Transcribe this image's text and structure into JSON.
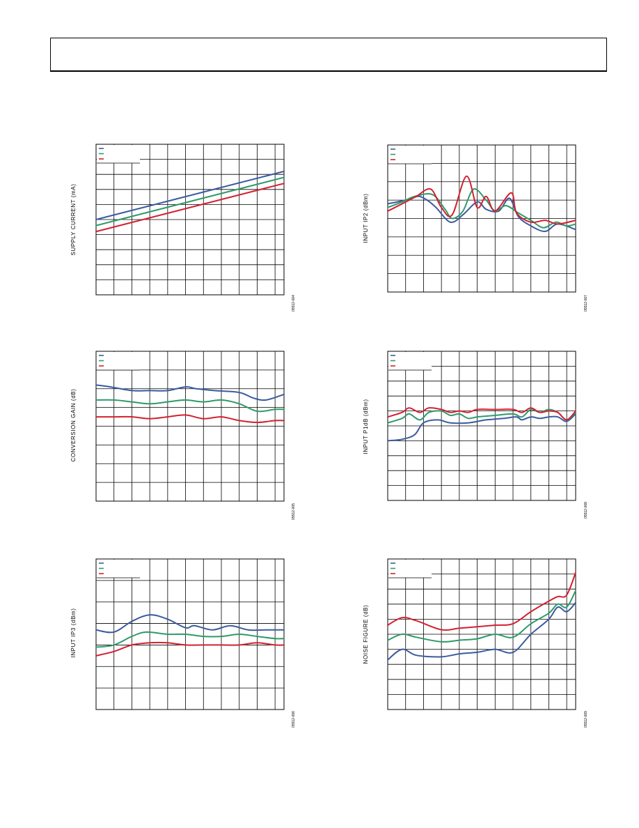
{
  "chart_data": [
    {
      "type": "line",
      "ylabel": "SUPPLY CURRENT (mA)",
      "figure_id": "05512-004",
      "grid": true,
      "legend": "top-left",
      "xlim": [
        0,
        10.5
      ],
      "ylim": [
        0,
        10
      ],
      "series": [
        {
          "color": "#3a5ba0",
          "points": [
            [
              0,
              5
            ],
            [
              10.5,
              8.2
            ]
          ]
        },
        {
          "color": "#2e9a6a",
          "points": [
            [
              0,
              4.6
            ],
            [
              10.5,
              7.8
            ]
          ]
        },
        {
          "color": "#d42030",
          "points": [
            [
              0,
              4.2
            ],
            [
              10.5,
              7.4
            ]
          ]
        }
      ]
    },
    {
      "type": "line",
      "ylabel": "INPUT IP2 (dBm)",
      "figure_id": "05512-007",
      "grid": true,
      "legend": "top-left",
      "xlim": [
        0,
        10.5
      ],
      "ylim": [
        0,
        8
      ],
      "series": [
        {
          "color": "#3a5ba0",
          "points": [
            [
              0,
              4.8
            ],
            [
              1,
              5
            ],
            [
              1.7,
              5.2
            ],
            [
              2.2,
              5
            ],
            [
              2.7,
              4.6
            ],
            [
              3.5,
              3.8
            ],
            [
              4.2,
              4.2
            ],
            [
              5,
              4.9
            ],
            [
              5.5,
              4.5
            ],
            [
              6.2,
              4.4
            ],
            [
              6.8,
              5.1
            ],
            [
              7.3,
              4.1
            ],
            [
              8,
              3.6
            ],
            [
              8.8,
              3.3
            ],
            [
              9.5,
              3.7
            ],
            [
              10.5,
              3.4
            ]
          ]
        },
        {
          "color": "#2e9a6a",
          "points": [
            [
              0,
              4.6
            ],
            [
              0.8,
              4.9
            ],
            [
              1.5,
              5.2
            ],
            [
              2.5,
              5.3
            ],
            [
              3.2,
              4.5
            ],
            [
              3.6,
              4
            ],
            [
              4.2,
              4.4
            ],
            [
              4.8,
              5.6
            ],
            [
              5.5,
              5
            ],
            [
              6,
              4.4
            ],
            [
              6.6,
              4.7
            ],
            [
              7.3,
              4.3
            ],
            [
              8,
              3.9
            ],
            [
              8.7,
              3.5
            ],
            [
              9.4,
              3.8
            ],
            [
              10,
              3.6
            ],
            [
              10.5,
              3.7
            ]
          ]
        },
        {
          "color": "#d42030",
          "points": [
            [
              0,
              4.4
            ],
            [
              1,
              4.9
            ],
            [
              1.6,
              5.2
            ],
            [
              2.4,
              5.6
            ],
            [
              3,
              4.6
            ],
            [
              3.6,
              4.2
            ],
            [
              4.4,
              6.3
            ],
            [
              5,
              4.6
            ],
            [
              5.5,
              5.2
            ],
            [
              6,
              4.4
            ],
            [
              6.9,
              5.4
            ],
            [
              7.2,
              4.3
            ],
            [
              8,
              3.8
            ],
            [
              8.8,
              3.9
            ],
            [
              9.5,
              3.7
            ],
            [
              10.5,
              3.9
            ]
          ]
        }
      ]
    },
    {
      "type": "line",
      "ylabel": "CONVERSION GAIN (dB)",
      "figure_id": "05512-005",
      "grid": true,
      "legend": "top-left",
      "xlim": [
        0,
        10.5
      ],
      "ylim": [
        0,
        8
      ],
      "series": [
        {
          "color": "#3a5ba0",
          "points": [
            [
              0,
              6.2
            ],
            [
              0.8,
              6.1
            ],
            [
              2,
              5.9
            ],
            [
              3,
              5.9
            ],
            [
              4,
              5.9
            ],
            [
              5,
              6.1
            ],
            [
              5.6,
              6
            ],
            [
              6.6,
              5.9
            ],
            [
              8,
              5.8
            ],
            [
              8.8,
              5.5
            ],
            [
              9.5,
              5.4
            ],
            [
              10.5,
              5.7
            ]
          ]
        },
        {
          "color": "#2e9a6a",
          "points": [
            [
              0,
              5.4
            ],
            [
              1,
              5.4
            ],
            [
              2,
              5.3
            ],
            [
              3,
              5.2
            ],
            [
              4,
              5.3
            ],
            [
              5,
              5.4
            ],
            [
              6,
              5.3
            ],
            [
              7,
              5.4
            ],
            [
              8,
              5.2
            ],
            [
              9,
              4.8
            ],
            [
              10,
              4.9
            ],
            [
              10.5,
              4.9
            ]
          ]
        },
        {
          "color": "#d42030",
          "points": [
            [
              0,
              4.5
            ],
            [
              1,
              4.5
            ],
            [
              2,
              4.5
            ],
            [
              3,
              4.4
            ],
            [
              4,
              4.5
            ],
            [
              5,
              4.6
            ],
            [
              6,
              4.4
            ],
            [
              7,
              4.5
            ],
            [
              8,
              4.3
            ],
            [
              9,
              4.2
            ],
            [
              10,
              4.3
            ],
            [
              10.5,
              4.3
            ]
          ]
        }
      ]
    },
    {
      "type": "line",
      "ylabel": "INPUT P1dB (dBm)",
      "figure_id": "05512-008",
      "grid": true,
      "legend": "top-left",
      "xlim": [
        0,
        10.5
      ],
      "ylim": [
        0,
        10
      ],
      "series": [
        {
          "color": "#3a5ba0",
          "points": [
            [
              0,
              4
            ],
            [
              0.8,
              4.1
            ],
            [
              1.5,
              4.4
            ],
            [
              2,
              5.2
            ],
            [
              2.8,
              5.4
            ],
            [
              3.5,
              5.2
            ],
            [
              4.5,
              5.2
            ],
            [
              5.5,
              5.4
            ],
            [
              6.5,
              5.5
            ],
            [
              7.2,
              5.6
            ],
            [
              7.5,
              5.4
            ],
            [
              8,
              5.6
            ],
            [
              8.5,
              5.5
            ],
            [
              9,
              5.6
            ],
            [
              9.5,
              5.6
            ],
            [
              10,
              5.3
            ],
            [
              10.5,
              5.8
            ]
          ]
        },
        {
          "color": "#2e9a6a",
          "points": [
            [
              0,
              5.2
            ],
            [
              0.8,
              5.5
            ],
            [
              1.2,
              5.8
            ],
            [
              1.8,
              5.4
            ],
            [
              2.3,
              5.9
            ],
            [
              3,
              6
            ],
            [
              3.5,
              5.7
            ],
            [
              4,
              5.8
            ],
            [
              4.5,
              5.5
            ],
            [
              5,
              5.6
            ],
            [
              6,
              5.7
            ],
            [
              7,
              5.8
            ],
            [
              7.5,
              5.6
            ],
            [
              8,
              6.1
            ],
            [
              8.5,
              5.9
            ],
            [
              9,
              6.1
            ],
            [
              9.5,
              5.9
            ],
            [
              10,
              5.4
            ],
            [
              10.5,
              5.9
            ]
          ]
        },
        {
          "color": "#d42030",
          "points": [
            [
              0,
              5.6
            ],
            [
              0.8,
              5.9
            ],
            [
              1.2,
              6.2
            ],
            [
              1.8,
              5.9
            ],
            [
              2.3,
              6.2
            ],
            [
              3,
              6.1
            ],
            [
              3.5,
              5.9
            ],
            [
              4,
              6
            ],
            [
              4.5,
              5.9
            ],
            [
              5,
              6.1
            ],
            [
              6,
              6.1
            ],
            [
              7,
              6.1
            ],
            [
              7.5,
              5.9
            ],
            [
              8,
              6.2
            ],
            [
              8.5,
              5.9
            ],
            [
              9,
              6
            ],
            [
              9.5,
              5.9
            ],
            [
              10,
              5.4
            ],
            [
              10.5,
              6
            ]
          ]
        }
      ]
    },
    {
      "type": "line",
      "ylabel": "INPUT IP3 (dBm)",
      "figure_id": "05512-006",
      "grid": true,
      "legend": "top-left",
      "xlim": [
        0,
        10.5
      ],
      "ylim": [
        0,
        7
      ],
      "series": [
        {
          "color": "#3a5ba0",
          "points": [
            [
              0,
              3.7
            ],
            [
              1,
              3.6
            ],
            [
              2,
              4.1
            ],
            [
              3,
              4.4
            ],
            [
              4,
              4.2
            ],
            [
              5,
              3.8
            ],
            [
              5.5,
              3.9
            ],
            [
              6.5,
              3.7
            ],
            [
              7.5,
              3.9
            ],
            [
              8.5,
              3.7
            ],
            [
              9.5,
              3.7
            ],
            [
              10.5,
              3.7
            ]
          ]
        },
        {
          "color": "#2e9a6a",
          "points": [
            [
              0,
              2.9
            ],
            [
              1,
              3
            ],
            [
              2,
              3.4
            ],
            [
              2.8,
              3.6
            ],
            [
              4,
              3.5
            ],
            [
              5,
              3.5
            ],
            [
              6,
              3.4
            ],
            [
              7,
              3.4
            ],
            [
              8,
              3.5
            ],
            [
              9,
              3.4
            ],
            [
              10,
              3.3
            ],
            [
              10.5,
              3.3
            ]
          ]
        },
        {
          "color": "#d42030",
          "points": [
            [
              0,
              2.5
            ],
            [
              1,
              2.7
            ],
            [
              2,
              3
            ],
            [
              3,
              3.1
            ],
            [
              4,
              3.1
            ],
            [
              5,
              3
            ],
            [
              6,
              3
            ],
            [
              7,
              3
            ],
            [
              8,
              3
            ],
            [
              9,
              3.1
            ],
            [
              10,
              3
            ],
            [
              10.5,
              3
            ]
          ]
        }
      ]
    },
    {
      "type": "line",
      "ylabel": "NOISE FIGURE (dB)",
      "figure_id": "05512-009",
      "grid": true,
      "legend": "top-left",
      "xlim": [
        0,
        10.5
      ],
      "ylim": [
        0,
        10
      ],
      "series": [
        {
          "color": "#3a5ba0",
          "points": [
            [
              0,
              3.3
            ],
            [
              0.8,
              4
            ],
            [
              1.6,
              3.6
            ],
            [
              3,
              3.5
            ],
            [
              4,
              3.7
            ],
            [
              5,
              3.8
            ],
            [
              6,
              4
            ],
            [
              7,
              3.8
            ],
            [
              8,
              5
            ],
            [
              9,
              6
            ],
            [
              9.5,
              6.8
            ],
            [
              10,
              6.5
            ],
            [
              10.5,
              7.1
            ]
          ]
        },
        {
          "color": "#2e9a6a",
          "points": [
            [
              0,
              4.6
            ],
            [
              0.8,
              5
            ],
            [
              1.6,
              4.8
            ],
            [
              3,
              4.5
            ],
            [
              4,
              4.6
            ],
            [
              5,
              4.7
            ],
            [
              6,
              5
            ],
            [
              7,
              4.8
            ],
            [
              8,
              5.7
            ],
            [
              9,
              6.4
            ],
            [
              9.5,
              7
            ],
            [
              10,
              6.8
            ],
            [
              10.5,
              7.9
            ]
          ]
        },
        {
          "color": "#d42030",
          "points": [
            [
              0,
              5.6
            ],
            [
              0.8,
              6.1
            ],
            [
              1.6,
              5.9
            ],
            [
              3,
              5.3
            ],
            [
              4,
              5.4
            ],
            [
              5,
              5.5
            ],
            [
              6,
              5.6
            ],
            [
              7,
              5.7
            ],
            [
              8,
              6.5
            ],
            [
              9,
              7.2
            ],
            [
              9.5,
              7.5
            ],
            [
              10,
              7.6
            ],
            [
              10.5,
              9.1
            ]
          ]
        }
      ]
    }
  ]
}
